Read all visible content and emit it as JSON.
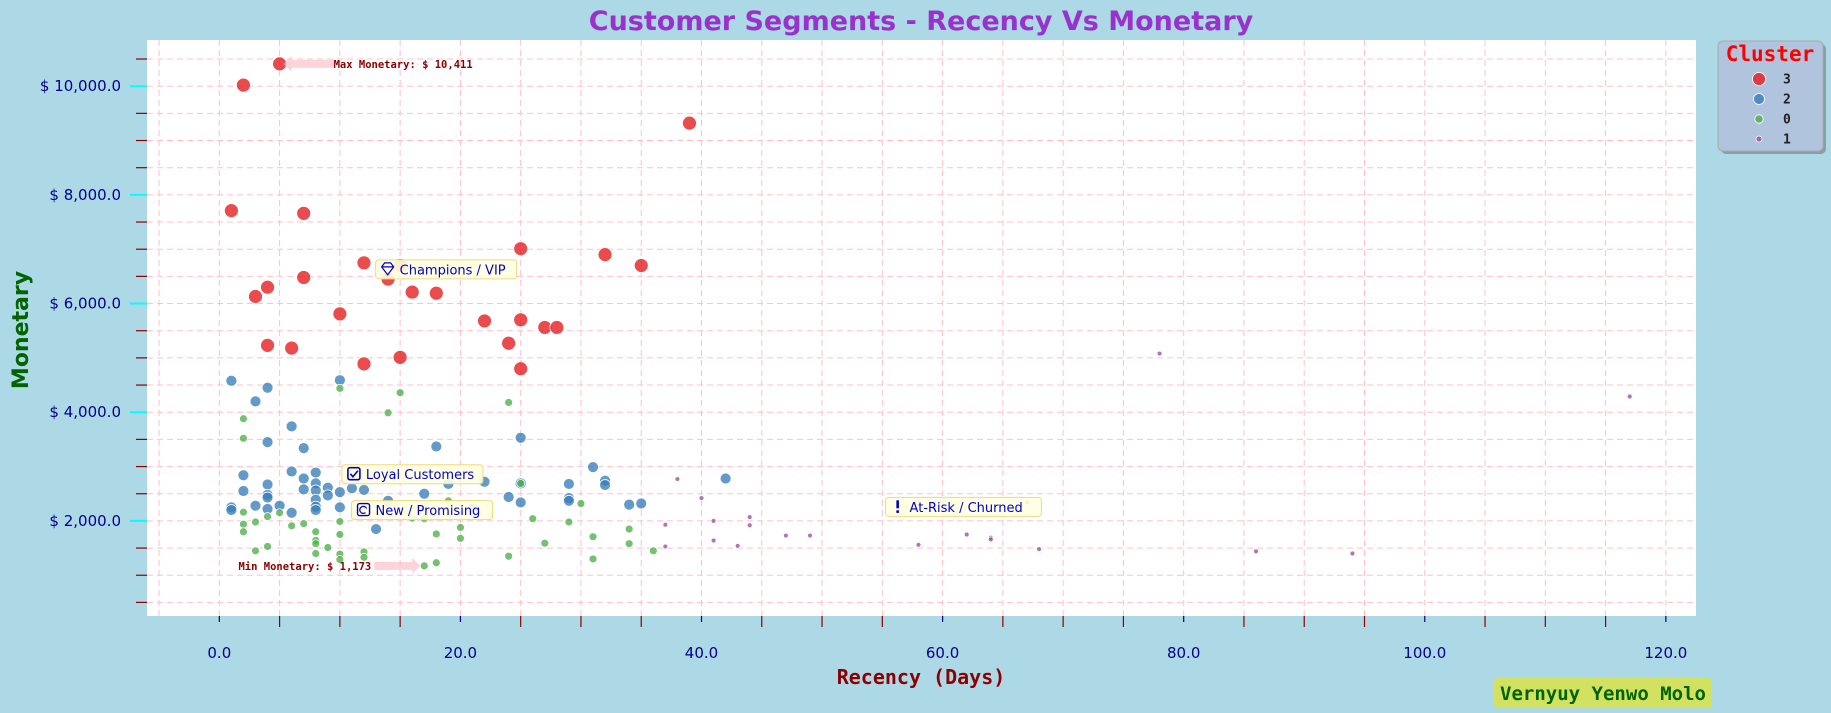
{
  "chart_data": {
    "type": "scatter",
    "title": "Customer Segments - Recency Vs Monetary",
    "xlabel": "Recency (Days)",
    "ylabel": "Monetary",
    "xlim": [
      -6,
      122.5
    ],
    "ylim": [
      250,
      10850
    ],
    "x_ticks": [
      0,
      20,
      40,
      60,
      80,
      100,
      120
    ],
    "x_tick_labels": [
      "0.0",
      "20.0",
      "40.0",
      "60.0",
      "80.0",
      "100.0",
      "120.0"
    ],
    "y_ticks": [
      2000,
      4000,
      6000,
      8000,
      10000
    ],
    "y_tick_labels": [
      "$ 2,000.0",
      "$ 4,000.0",
      "$ 6,000.0",
      "$ 8,000.0",
      "$ 10,000.0"
    ],
    "grid": true,
    "legend_title": "Cluster",
    "legend_position": "outside-top-right",
    "series": [
      {
        "name": "3",
        "color": "#e41a1c",
        "points": [
          [
            5,
            10411
          ],
          [
            2,
            10020
          ],
          [
            39,
            9320
          ],
          [
            1,
            7710
          ],
          [
            7,
            7660
          ],
          [
            25,
            7010
          ],
          [
            32,
            6900
          ],
          [
            35,
            6700
          ],
          [
            12,
            6750
          ],
          [
            15,
            6700
          ],
          [
            14,
            6450
          ],
          [
            7,
            6480
          ],
          [
            4,
            6300
          ],
          [
            3,
            6130
          ],
          [
            16,
            6210
          ],
          [
            18,
            6190
          ],
          [
            10,
            5810
          ],
          [
            22,
            5680
          ],
          [
            25,
            5700
          ],
          [
            27,
            5560
          ],
          [
            28,
            5560
          ],
          [
            24,
            5270
          ],
          [
            4,
            5230
          ],
          [
            6,
            5180
          ],
          [
            15,
            5010
          ],
          [
            12,
            4890
          ],
          [
            25,
            4800
          ]
        ]
      },
      {
        "name": "2",
        "color": "#377eb8",
        "points": [
          [
            1,
            4580
          ],
          [
            10,
            4590
          ],
          [
            4,
            4450
          ],
          [
            3,
            4200
          ],
          [
            6,
            3740
          ],
          [
            25,
            3530
          ],
          [
            4,
            3450
          ],
          [
            18,
            3370
          ],
          [
            7,
            3340
          ],
          [
            31,
            2990
          ],
          [
            6,
            2910
          ],
          [
            8,
            2890
          ],
          [
            2,
            2840
          ],
          [
            42,
            2780
          ],
          [
            7,
            2780
          ],
          [
            32,
            2740
          ],
          [
            22,
            2720
          ],
          [
            4,
            2670
          ],
          [
            8,
            2690
          ],
          [
            19,
            2680
          ],
          [
            25,
            2690
          ],
          [
            29,
            2680
          ],
          [
            32,
            2660
          ],
          [
            11,
            2600
          ],
          [
            9,
            2610
          ],
          [
            7,
            2580
          ],
          [
            2,
            2550
          ],
          [
            8,
            2560
          ],
          [
            12,
            2570
          ],
          [
            10,
            2530
          ],
          [
            17,
            2500
          ],
          [
            4,
            2480
          ],
          [
            9,
            2470
          ],
          [
            4,
            2430
          ],
          [
            8,
            2390
          ],
          [
            14,
            2370
          ],
          [
            29,
            2420
          ],
          [
            29,
            2370
          ],
          [
            35,
            2320
          ],
          [
            34,
            2300
          ],
          [
            25,
            2340
          ],
          [
            24,
            2440
          ],
          [
            3,
            2280
          ],
          [
            1,
            2250
          ],
          [
            5,
            2280
          ],
          [
            8,
            2260
          ],
          [
            4,
            2220
          ],
          [
            10,
            2250
          ],
          [
            8,
            2200
          ],
          [
            1,
            2200
          ],
          [
            6,
            2150
          ],
          [
            21,
            2230
          ],
          [
            13,
            1850
          ]
        ]
      },
      {
        "name": "0",
        "color": "#4daf4a",
        "points": [
          [
            10,
            4440
          ],
          [
            15,
            4360
          ],
          [
            24,
            4180
          ],
          [
            14,
            3990
          ],
          [
            2,
            3880
          ],
          [
            2,
            3520
          ],
          [
            25,
            2690
          ],
          [
            30,
            2320
          ],
          [
            19,
            2370
          ],
          [
            2,
            2160
          ],
          [
            4,
            2080
          ],
          [
            3,
            1980
          ],
          [
            5,
            2150
          ],
          [
            7,
            1950
          ],
          [
            6,
            1910
          ],
          [
            10,
            1990
          ],
          [
            16,
            2050
          ],
          [
            17,
            2040
          ],
          [
            20,
            1880
          ],
          [
            26,
            2040
          ],
          [
            29,
            1980
          ],
          [
            34,
            1850
          ],
          [
            2,
            1940
          ],
          [
            2,
            1800
          ],
          [
            8,
            1800
          ],
          [
            10,
            1750
          ],
          [
            18,
            1760
          ],
          [
            20,
            1680
          ],
          [
            27,
            1590
          ],
          [
            31,
            1710
          ],
          [
            34,
            1580
          ],
          [
            8,
            1640
          ],
          [
            8,
            1580
          ],
          [
            9,
            1510
          ],
          [
            4,
            1530
          ],
          [
            3,
            1450
          ],
          [
            12,
            1430
          ],
          [
            10,
            1390
          ],
          [
            8,
            1400
          ],
          [
            12,
            1330
          ],
          [
            10,
            1290
          ],
          [
            18,
            1230
          ],
          [
            24,
            1350
          ],
          [
            31,
            1300
          ],
          [
            36,
            1450
          ],
          [
            17,
            1173
          ]
        ]
      },
      {
        "name": "1",
        "color": "#984ea3",
        "points": [
          [
            78,
            5080
          ],
          [
            117,
            4290
          ],
          [
            38,
            2770
          ],
          [
            40,
            2420
          ],
          [
            67,
            2340
          ],
          [
            37,
            1930
          ],
          [
            41,
            2000
          ],
          [
            44,
            1920
          ],
          [
            44,
            2070
          ],
          [
            47,
            1730
          ],
          [
            49,
            1730
          ],
          [
            62,
            1750
          ],
          [
            64,
            1690
          ],
          [
            64,
            1660
          ],
          [
            41,
            1640
          ],
          [
            43,
            1540
          ],
          [
            37,
            1530
          ],
          [
            58,
            1560
          ],
          [
            68,
            1480
          ],
          [
            86,
            1440
          ],
          [
            94,
            1400
          ]
        ]
      }
    ],
    "annotations": {
      "max": {
        "text": "Max Monetary: $ 10,411",
        "x": 5,
        "y": 10411
      },
      "min": {
        "text": "Min Monetary: $ 1,173",
        "x": 17,
        "y": 1173
      }
    },
    "segment_labels": [
      {
        "text": "Champions / VIP",
        "icon": "gem-icon",
        "x": 13.3,
        "y": 6620
      },
      {
        "text": "Loyal Customers",
        "icon": "checkbox-icon",
        "x": 10.5,
        "y": 2850
      },
      {
        "text": "New / Promising",
        "icon": "refresh-icon",
        "x": 11.3,
        "y": 2190
      },
      {
        "text": "At-Risk / Churned",
        "icon": "exclamation-icon",
        "x": 55.6,
        "y": 2250
      }
    ]
  },
  "watermark": "Vernyuy Yenwo Molo",
  "colors": {
    "background": "#add8e6",
    "plot_background": "#ffffff",
    "title": "#9932cc",
    "xlabel": "#8b0000",
    "ylabel": "#006400",
    "grid": "#ffc0cb",
    "ticks": "#00008b"
  }
}
